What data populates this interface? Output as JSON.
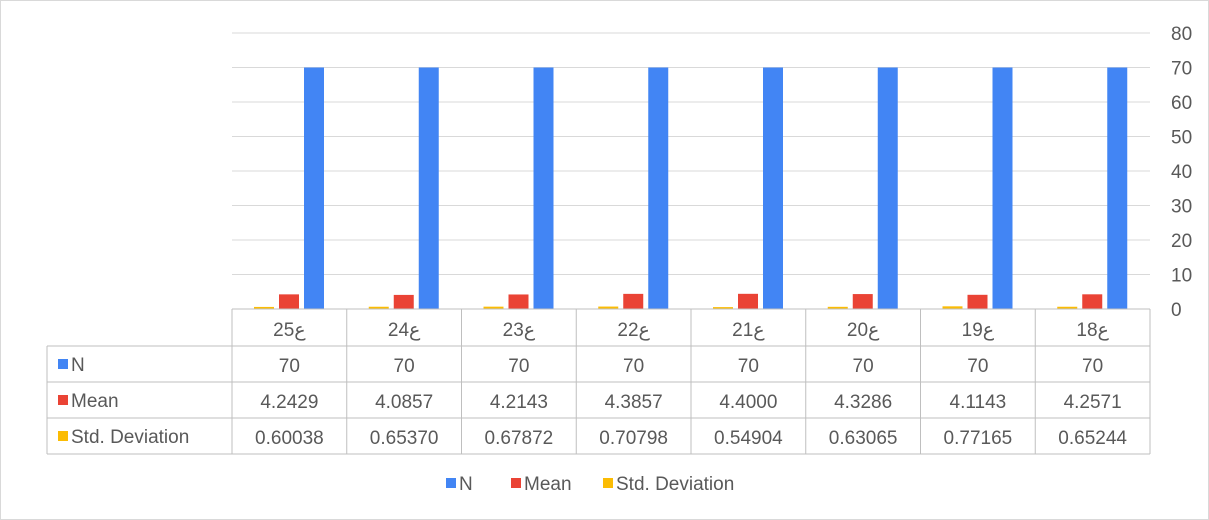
{
  "chart_data": {
    "type": "bar",
    "categories": [
      "ع25",
      "ع24",
      "ع23",
      "ع22",
      "ع21",
      "ع20",
      "ع19",
      "ع18"
    ],
    "series": [
      {
        "name": "N",
        "color": "#4285f4",
        "values": [
          70,
          70,
          70,
          70,
          70,
          70,
          70,
          70
        ],
        "labels": [
          "70",
          "70",
          "70",
          "70",
          "70",
          "70",
          "70",
          "70"
        ]
      },
      {
        "name": "Mean",
        "color": "#ea4335",
        "values": [
          4.2429,
          4.0857,
          4.2143,
          4.3857,
          4.4,
          4.3286,
          4.1143,
          4.2571
        ],
        "labels": [
          "4.2429",
          "4.0857",
          "4.2143",
          "4.3857",
          "4.4000",
          "4.3286",
          "4.1143",
          "4.2571"
        ]
      },
      {
        "name": "Std. Deviation",
        "color": "#fbbc04",
        "values": [
          0.60038,
          0.6537,
          0.67872,
          0.70798,
          0.54904,
          0.63065,
          0.77165,
          0.65244
        ],
        "labels": [
          "0.60038",
          "0.65370",
          "0.67872",
          "0.70798",
          "0.54904",
          "0.63065",
          "0.77165",
          "0.65244"
        ]
      }
    ],
    "ylim": [
      0,
      80
    ],
    "yticks": [
      "0",
      "10",
      "20",
      "30",
      "40",
      "50",
      "60",
      "70",
      "80"
    ],
    "y_axis_side": "right",
    "grid": true,
    "legend": "bottom",
    "data_table": true
  }
}
